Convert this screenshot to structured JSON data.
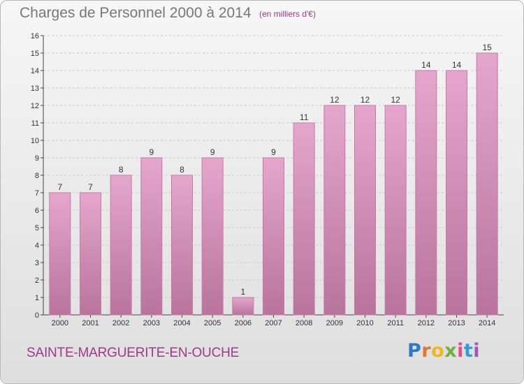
{
  "header": {
    "title": "Charges de Personnel 2000 à 2014",
    "subtitle": "(en milliers d'€)"
  },
  "footer": {
    "commune": "SAINTE-MARGUERITE-EN-OUCHE",
    "logo": {
      "p": "P",
      "r": "r",
      "o": "o",
      "x": "x",
      "i1": "i",
      "t": "t",
      "i2": "i"
    }
  },
  "colors": {
    "bar_top": "#e5a6cd",
    "bar_bottom": "#b8749c",
    "bar_edge": "#c47aa4",
    "accent": "#a0388a",
    "grid": "#c8c8c8",
    "text": "#333333"
  },
  "chart_data": {
    "type": "bar",
    "categories": [
      "2000",
      "2001",
      "2002",
      "2003",
      "2004",
      "2005",
      "2006",
      "2007",
      "2008",
      "2009",
      "2010",
      "2011",
      "2012",
      "2013",
      "2014"
    ],
    "values": [
      7,
      7,
      8,
      9,
      8,
      9,
      1,
      9,
      11,
      12,
      12,
      12,
      14,
      14,
      15
    ],
    "ylim": [
      0,
      16
    ],
    "yticks": [
      0,
      1,
      2,
      3,
      4,
      5,
      6,
      7,
      8,
      9,
      10,
      11,
      12,
      13,
      14,
      15,
      16
    ],
    "grid": true
  }
}
